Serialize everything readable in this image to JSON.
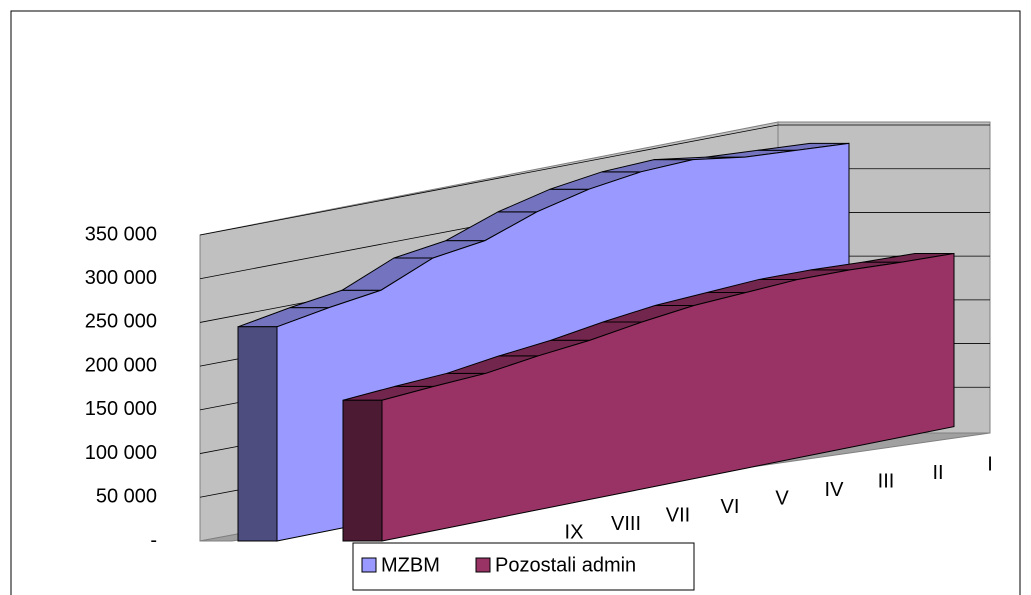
{
  "chart_data": {
    "type": "area3d",
    "categories": [
      null,
      null,
      null,
      "IX",
      "VIII",
      "VII",
      "VI",
      "V",
      "IV",
      "III",
      "II",
      "I"
    ],
    "series": [
      {
        "name": "MZBM",
        "color": "#9999ff",
        "values": [
          245000,
          255000,
          263000,
          288000,
          296000,
          317000,
          331000,
          339000,
          341000,
          332000,
          328000,
          324000
        ]
      },
      {
        "name": "Pozostali admin",
        "color": "#993366",
        "values": [
          161000,
          165000,
          168000,
          176000,
          182000,
          191000,
          198000,
          201000,
          204000,
          203000,
          200000,
          198000
        ]
      }
    ],
    "ylim": [
      0,
      350000
    ],
    "yticks": [
      {
        "value": 0,
        "label": "-"
      },
      {
        "value": 50000,
        "label": "50 000"
      },
      {
        "value": 100000,
        "label": "100 000"
      },
      {
        "value": 150000,
        "label": "150 000"
      },
      {
        "value": 200000,
        "label": "200 000"
      },
      {
        "value": 250000,
        "label": "250 000"
      },
      {
        "value": 300000,
        "label": "300 000"
      },
      {
        "value": 350000,
        "label": "350 000"
      }
    ],
    "grid": true
  }
}
